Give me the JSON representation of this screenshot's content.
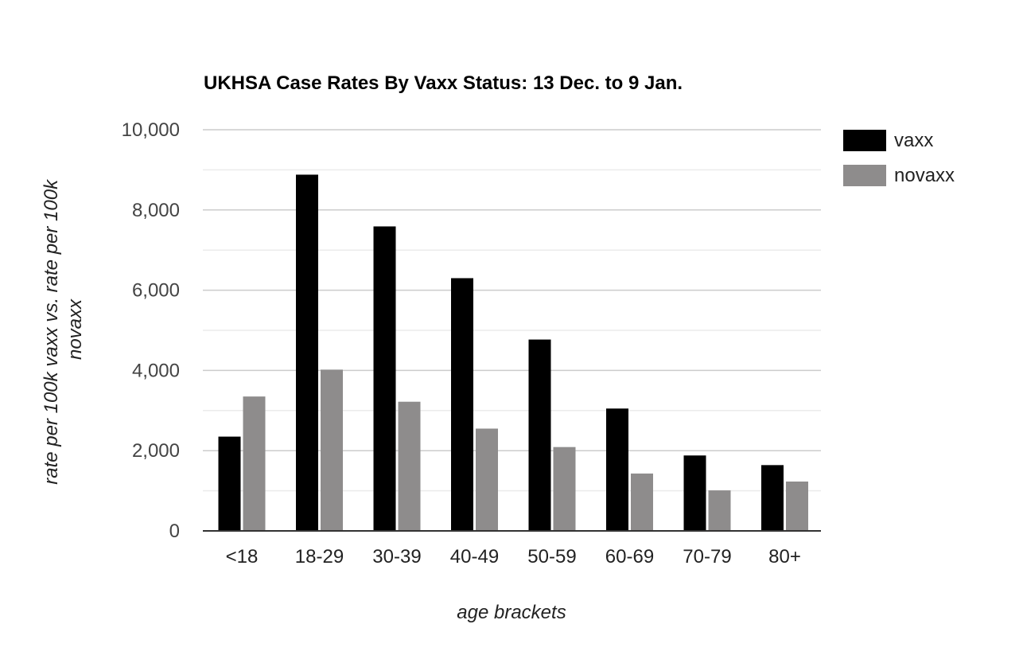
{
  "chart_data": {
    "type": "bar",
    "title": "UKHSA Case Rates By Vaxx Status: 13 Dec. to 9 Jan.",
    "xlabel": "age brackets",
    "ylabel_lines": [
      "rate per 100k vaxx vs. rate per 100k",
      "novaxx"
    ],
    "categories": [
      "<18",
      "18-29",
      "30-39",
      "40-49",
      "50-59",
      "60-69",
      "70-79",
      "80+"
    ],
    "series": [
      {
        "name": "vaxx",
        "color": "#000000",
        "values": [
          2350,
          8880,
          7590,
          6300,
          4770,
          3050,
          1880,
          1640
        ]
      },
      {
        "name": "novaxx",
        "color": "#8e8c8c",
        "values": [
          3350,
          4020,
          3220,
          2550,
          2090,
          1430,
          1010,
          1230
        ]
      }
    ],
    "ylim": [
      0,
      10000
    ],
    "yticks": [
      0,
      2000,
      4000,
      6000,
      8000,
      10000
    ],
    "ytick_labels": [
      "0",
      "2,000",
      "4,000",
      "6,000",
      "8,000",
      "10,000"
    ],
    "minor_gridlines": true,
    "grid": true,
    "legend_position": "right"
  }
}
